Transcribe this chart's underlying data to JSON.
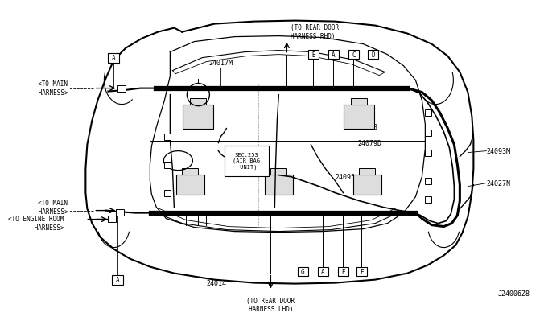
{
  "bg_color": "#ffffff",
  "line_color": "#000000",
  "diagram_code": "J24006Z8",
  "labels": {
    "top_center_arrow": "(TO REAR DOOR\nHARNESS RHD)",
    "bottom_center_arrow": "(TO REAR DOOR\nHARNESS LHD)",
    "left_main1": "<TO MAIN\n HARNESS>",
    "left_main2": "<TO MAIN\n HARNESS>",
    "left_engine": "<TO ENGINE ROOM\n HARNESS>",
    "p24017M": "24017M",
    "p24014": "24014",
    "p24058": "24058",
    "p24079D": "24079D",
    "p24095": "24095",
    "p24093M": "24093M",
    "p24027N": "24027N",
    "sec253": "SEC.253\n(AIR BAG\n UNIT)",
    "conn_top": [
      "B",
      "A",
      "C",
      "D"
    ],
    "conn_bot": [
      "G",
      "A",
      "E",
      "F"
    ]
  }
}
